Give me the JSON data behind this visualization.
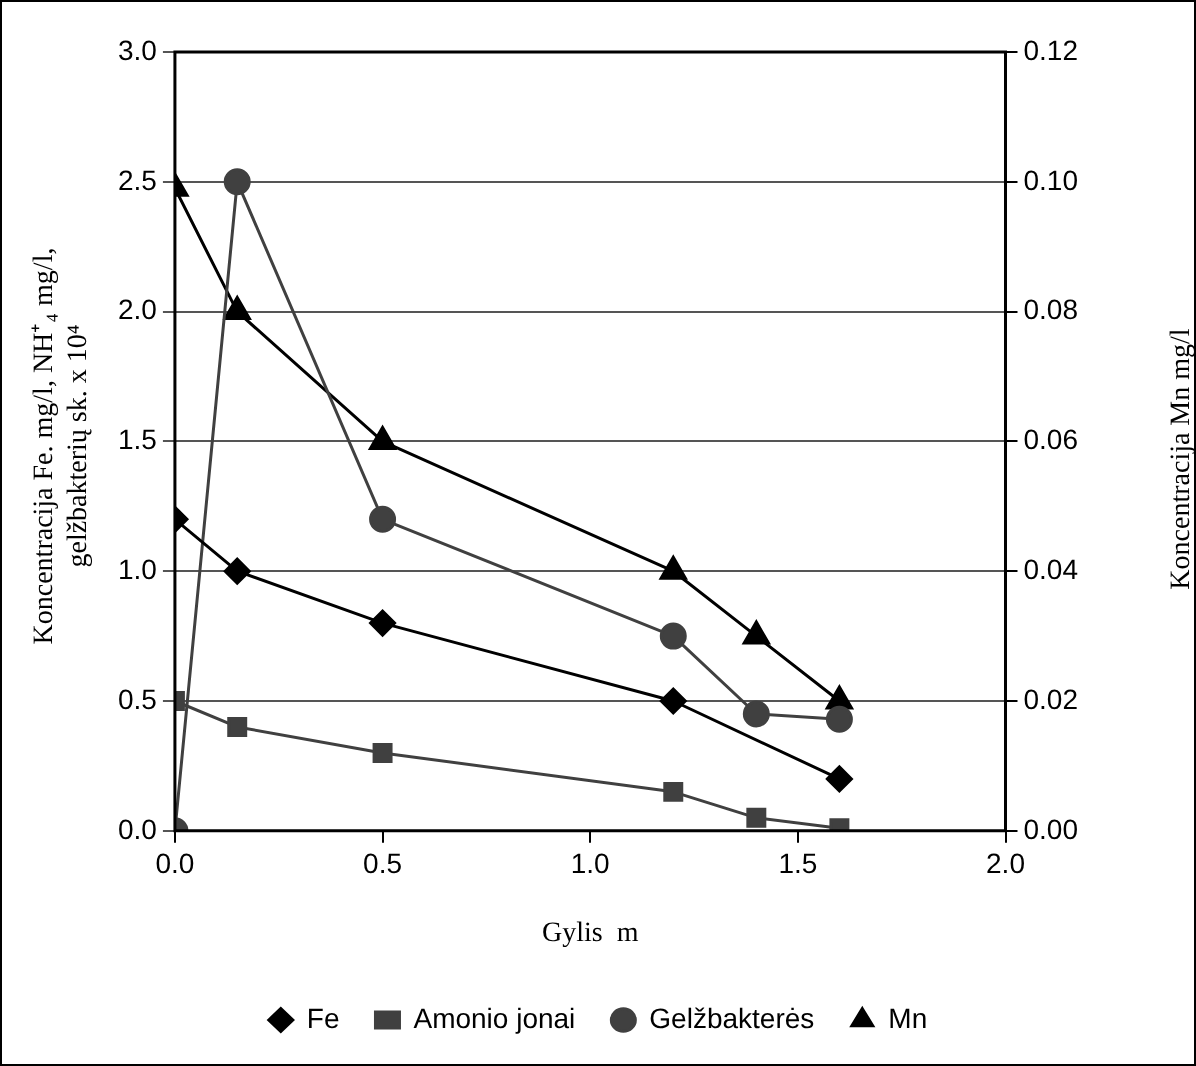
{
  "chart_data": {
    "type": "line",
    "xlabel": "Gylis  m",
    "ylabel": "Koncentracija Fe. mg/l, NH⁺₄ mg/l, gelžbakterių sk. x 10⁴",
    "y2label": "Koncentracija Mn  mg/l",
    "xlim": [
      0,
      2
    ],
    "xticks": [
      {
        "value": 0,
        "label": "0.0"
      },
      0.5,
      {
        "value": 1,
        "label": "1.0"
      },
      1.5,
      {
        "value": 2,
        "label": "2.0"
      }
    ],
    "ylim": [
      0,
      3
    ],
    "yticks": [
      {
        "value": 0,
        "label": "0.0"
      },
      0.5,
      {
        "value": 1,
        "label": "1.0"
      },
      1.5,
      {
        "value": 2,
        "label": "2.0"
      },
      2.5,
      {
        "value": 3,
        "label": "3.0"
      }
    ],
    "y2lim": [
      0,
      0.12
    ],
    "y2ticks": [
      {
        "value": 0,
        "label": "0.00"
      },
      {
        "value": 0.02,
        "label": "0.02"
      },
      {
        "value": 0.04,
        "label": "0.04"
      },
      {
        "value": 0.06,
        "label": "0.06"
      },
      {
        "value": 0.08,
        "label": "0.08"
      },
      {
        "value": 0.1,
        "label": "0.10"
      },
      {
        "value": 0.12,
        "label": "0.12"
      }
    ],
    "grid": "y",
    "legend": "bottom",
    "line_style": "solid",
    "series": [
      {
        "name": "Fe",
        "color": "#000000",
        "marker": "diamond",
        "x": [
          0,
          0.15,
          0.5,
          1.2,
          1.6
        ],
        "values": [
          1.2,
          1.0,
          0.8,
          0.5,
          0.2
        ]
      },
      {
        "name": "Amonio jonai",
        "color": "#404040",
        "marker": "square",
        "x": [
          0,
          0.15,
          0.5,
          1.2,
          1.4,
          1.6
        ],
        "values": [
          0.5,
          0.4,
          0.3,
          0.15,
          0.05,
          0.01
        ]
      },
      {
        "name": "Gelžbakterės",
        "color": "#404040",
        "marker": "circle",
        "x": [
          0,
          0.15,
          0.5,
          1.2,
          1.4,
          1.6
        ],
        "values": [
          0,
          2.5,
          1.2,
          0.75,
          0.45,
          0.43
        ]
      },
      {
        "name": "Mn",
        "color": "#000000",
        "marker": "triangle",
        "axis": "y2",
        "x": [
          0,
          0.15,
          0.5,
          1.2,
          1.4,
          1.6
        ],
        "values": [
          0.099,
          0.08,
          0.06,
          0.04,
          0.03,
          0.02
        ]
      }
    ]
  }
}
